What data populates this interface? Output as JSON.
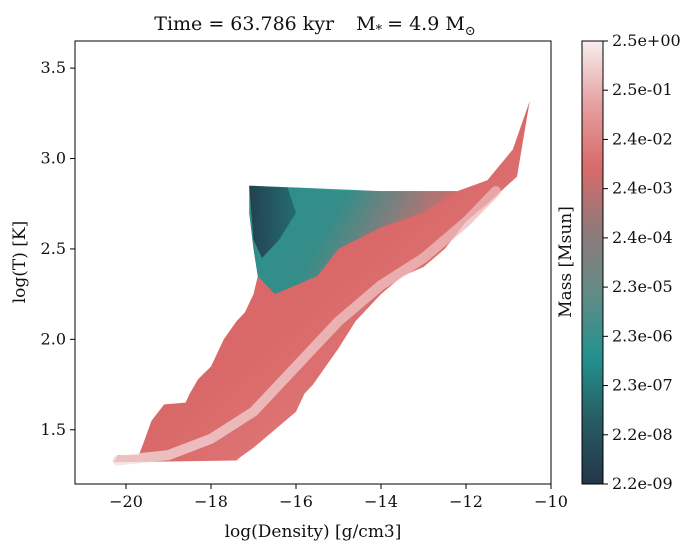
{
  "chart_data": {
    "type": "heatmap",
    "title": "Time = 63.786 kyr    M$_*$ = 4.9 M$_\\odot$",
    "title_parts": {
      "time": "Time = 63.786 kyr",
      "mass_symbol": "M",
      "mass_sub": "*",
      "mass_value": "= 4.9 M",
      "mass_unit_sub": "⊙"
    },
    "xlabel": "log(Density) [g/cm3]",
    "ylabel": "log(T) [K]",
    "xlim": [
      -21.2,
      -10.0
    ],
    "ylim": [
      1.2,
      3.65
    ],
    "xticks": [
      -20,
      -18,
      -16,
      -14,
      -12,
      -10
    ],
    "xtick_labels": [
      "−20",
      "−18",
      "−16",
      "−14",
      "−12",
      "−10"
    ],
    "yticks": [
      1.5,
      2.0,
      2.5,
      3.0,
      3.5
    ],
    "ytick_labels": [
      "1.5",
      "2.0",
      "2.5",
      "3.0",
      "3.5"
    ],
    "colorbar": {
      "label": "Mass [Msun]",
      "tick_labels": [
        "2.2e-09",
        "2.2e-08",
        "2.3e-07",
        "2.3e-06",
        "2.3e-05",
        "2.4e-04",
        "2.4e-03",
        "2.4e-02",
        "2.5e-01",
        "2.5e+00"
      ],
      "colors": [
        "#24364a",
        "#265c62",
        "#23918e",
        "#628b87",
        "#8e7a7a",
        "#d86a6a",
        "#e5a0a0",
        "#f9eeee"
      ]
    },
    "region_outline": [
      [
        -20.3,
        1.32
      ],
      [
        -20.2,
        1.36
      ],
      [
        -19.7,
        1.36
      ],
      [
        -19.6,
        1.42
      ],
      [
        -19.4,
        1.55
      ],
      [
        -19.1,
        1.64
      ],
      [
        -18.6,
        1.65
      ],
      [
        -18.5,
        1.7
      ],
      [
        -18.3,
        1.78
      ],
      [
        -18.0,
        1.85
      ],
      [
        -17.7,
        2.0
      ],
      [
        -17.4,
        2.1
      ],
      [
        -17.2,
        2.15
      ],
      [
        -17.0,
        2.25
      ],
      [
        -16.9,
        2.35
      ],
      [
        -17.0,
        2.5
      ],
      [
        -17.1,
        2.7
      ],
      [
        -17.0,
        2.85
      ],
      [
        -16.6,
        2.84
      ],
      [
        -16.0,
        2.84
      ],
      [
        -15.0,
        2.82
      ],
      [
        -14.0,
        2.82
      ],
      [
        -13.0,
        2.82
      ],
      [
        -12.2,
        2.82
      ],
      [
        -11.5,
        2.88
      ],
      [
        -10.9,
        3.05
      ],
      [
        -10.5,
        3.32
      ],
      [
        -10.8,
        2.9
      ],
      [
        -11.5,
        2.75
      ],
      [
        -12.0,
        2.65
      ],
      [
        -12.5,
        2.5
      ],
      [
        -13.0,
        2.4
      ],
      [
        -13.5,
        2.35
      ],
      [
        -14.0,
        2.25
      ],
      [
        -14.6,
        2.1
      ],
      [
        -15.0,
        1.95
      ],
      [
        -15.3,
        1.85
      ],
      [
        -15.6,
        1.75
      ],
      [
        -15.8,
        1.7
      ],
      [
        -16.0,
        1.6
      ],
      [
        -16.5,
        1.5
      ],
      [
        -17.0,
        1.4
      ],
      [
        -17.3,
        1.35
      ],
      [
        -17.4,
        1.33
      ],
      [
        -20.3,
        1.32
      ]
    ],
    "hot_region_outline": [
      [
        -17.1,
        2.85
      ],
      [
        -16.0,
        2.84
      ],
      [
        -14.0,
        2.82
      ],
      [
        -12.2,
        2.82
      ],
      [
        -13.0,
        2.7
      ],
      [
        -14.0,
        2.62
      ],
      [
        -15.0,
        2.5
      ],
      [
        -15.5,
        2.35
      ],
      [
        -16.0,
        2.3
      ],
      [
        -16.5,
        2.25
      ],
      [
        -16.9,
        2.35
      ],
      [
        -17.0,
        2.5
      ],
      [
        -17.1,
        2.7
      ]
    ],
    "dark_region_outline": [
      [
        -17.1,
        2.85
      ],
      [
        -16.2,
        2.84
      ],
      [
        -16.0,
        2.7
      ],
      [
        -16.4,
        2.55
      ],
      [
        -16.8,
        2.45
      ],
      [
        -17.0,
        2.55
      ]
    ],
    "ridge_line": [
      [
        -20.2,
        1.33
      ],
      [
        -19.0,
        1.36
      ],
      [
        -18.0,
        1.45
      ],
      [
        -17.0,
        1.6
      ],
      [
        -16.0,
        1.85
      ],
      [
        -15.0,
        2.1
      ],
      [
        -14.0,
        2.3
      ],
      [
        -13.0,
        2.45
      ],
      [
        -12.0,
        2.65
      ],
      [
        -11.3,
        2.82
      ]
    ]
  }
}
